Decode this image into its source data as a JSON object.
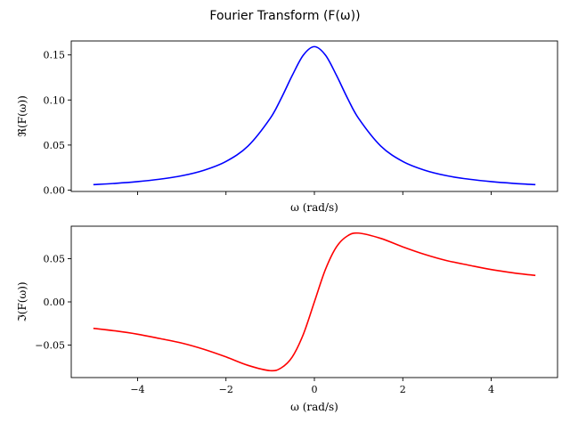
{
  "figure": {
    "suptitle": "Fourier Transform (F(ω))"
  },
  "chart_data": [
    {
      "type": "line",
      "name": "real-part",
      "xlabel": "ω (rad/s)",
      "ylabel": "ℜ(F(ω))",
      "xlim": [
        -5.5,
        5.5
      ],
      "ylim": [
        -0.0015,
        0.1655
      ],
      "xticks": [
        -4,
        -2,
        0,
        2,
        4
      ],
      "show_xtick_labels": false,
      "yticks": [
        0.0,
        0.05,
        0.1,
        0.15
      ],
      "ytick_labels": [
        "0.00",
        "0.05",
        "0.10",
        "0.15"
      ],
      "grid": false,
      "legend": "none",
      "series": [
        {
          "color": "#0000ff",
          "x": [
            -5,
            -4.5,
            -4,
            -3.5,
            -3,
            -2.5,
            -2,
            -1.5,
            -1,
            -0.75,
            -0.5,
            -0.25,
            0,
            0.25,
            0.5,
            0.75,
            1,
            1.5,
            2,
            2.5,
            3,
            3.5,
            4,
            4.5,
            5
          ],
          "y": [
            0.0061,
            0.0075,
            0.0094,
            0.0121,
            0.0159,
            0.022,
            0.0318,
            0.049,
            0.0796,
            0.1019,
            0.1273,
            0.1498,
            0.1592,
            0.1498,
            0.1273,
            0.1019,
            0.0796,
            0.049,
            0.0318,
            0.022,
            0.0159,
            0.0121,
            0.0094,
            0.0075,
            0.0061
          ]
        }
      ]
    },
    {
      "type": "line",
      "name": "imaginary-part",
      "xlabel": "ω (rad/s)",
      "ylabel": "ℑ(F(ω))",
      "xlim": [
        -5.5,
        5.5
      ],
      "ylim": [
        -0.0876,
        0.0876
      ],
      "xticks": [
        -4,
        -2,
        0,
        2,
        4
      ],
      "xtick_labels": [
        "−4",
        "−2",
        "0",
        "2",
        "4"
      ],
      "show_xtick_labels": true,
      "yticks": [
        -0.05,
        0.0,
        0.05
      ],
      "ytick_labels": [
        "−0.05",
        "0.00",
        "0.05"
      ],
      "grid": false,
      "legend": "none",
      "series": [
        {
          "color": "#ff0000",
          "x": [
            -5,
            -4.5,
            -4,
            -3.5,
            -3,
            -2.5,
            -2,
            -1.5,
            -1,
            -0.75,
            -0.5,
            -0.25,
            0,
            0.25,
            0.5,
            0.75,
            1,
            1.5,
            2,
            2.5,
            3,
            3.5,
            4,
            4.5,
            5
          ],
          "y": [
            -0.0306,
            -0.0336,
            -0.0374,
            -0.0424,
            -0.0477,
            -0.0549,
            -0.0637,
            -0.0735,
            -0.0796,
            -0.0764,
            -0.0637,
            -0.0375,
            0.0,
            0.0375,
            0.0637,
            0.0764,
            0.0796,
            0.0735,
            0.0637,
            0.0549,
            0.0477,
            0.0424,
            0.0374,
            0.0336,
            0.0306
          ]
        }
      ]
    }
  ]
}
